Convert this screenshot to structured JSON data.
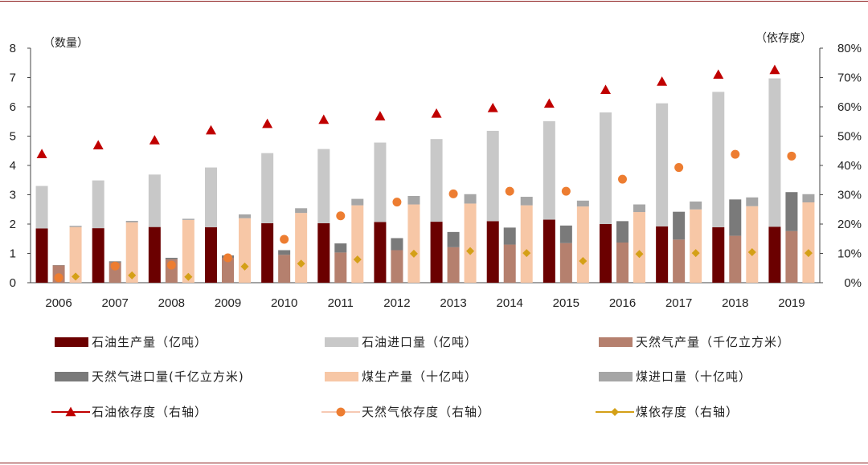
{
  "chart_data": {
    "type": "bar",
    "categories": [
      "2006",
      "2007",
      "2008",
      "2009",
      "2010",
      "2011",
      "2012",
      "2013",
      "2014",
      "2015",
      "2016",
      "2017",
      "2018",
      "2019"
    ],
    "ylabel_left": "（数量）",
    "ylabel_right": "（依存度）",
    "ylim_left": [
      0,
      8
    ],
    "ylim_right": [
      0,
      80
    ],
    "yticks_left": [
      "0",
      "1",
      "2",
      "3",
      "4",
      "5",
      "6",
      "7",
      "8"
    ],
    "yticks_right": [
      "0%",
      "10%",
      "20%",
      "30%",
      "40%",
      "50%",
      "60%",
      "70%",
      "80%"
    ],
    "series": [
      {
        "name": "石油生产量（亿吨）",
        "kind": "bar-stack-oil",
        "color": "#6b0000",
        "values": [
          1.85,
          1.86,
          1.9,
          1.89,
          2.03,
          2.03,
          2.07,
          2.08,
          2.1,
          2.15,
          2.0,
          1.92,
          1.89,
          1.91
        ]
      },
      {
        "name": "石油进口量（亿吨）",
        "kind": "bar-stack-oil",
        "color": "#c8c8c8",
        "values": [
          1.45,
          1.63,
          1.79,
          2.04,
          2.39,
          2.53,
          2.71,
          2.82,
          3.08,
          3.36,
          3.81,
          4.2,
          4.62,
          5.06
        ]
      },
      {
        "name": "天然气产量（千亿立方米）",
        "kind": "bar-stack-gas",
        "color": "#b5806e",
        "values": [
          0.59,
          0.69,
          0.8,
          0.85,
          0.95,
          1.03,
          1.11,
          1.21,
          1.3,
          1.35,
          1.37,
          1.47,
          1.6,
          1.76
        ]
      },
      {
        "name": "天然气进口量(千亿立方米)",
        "kind": "bar-stack-gas",
        "color": "#7a7a7a",
        "values": [
          0.01,
          0.04,
          0.05,
          0.08,
          0.16,
          0.31,
          0.41,
          0.52,
          0.58,
          0.6,
          0.73,
          0.95,
          1.24,
          1.33
        ]
      },
      {
        "name": "煤生产量（十亿吨）",
        "kind": "bar-stack-coal",
        "color": "#f7c7a6",
        "values": [
          1.9,
          2.06,
          2.14,
          2.2,
          2.38,
          2.64,
          2.67,
          2.7,
          2.64,
          2.6,
          2.41,
          2.5,
          2.61,
          2.74
        ]
      },
      {
        "name": "煤进口量（十亿吨）",
        "kind": "bar-stack-coal",
        "color": "#a6a6a6",
        "values": [
          0.04,
          0.05,
          0.04,
          0.13,
          0.16,
          0.22,
          0.29,
          0.32,
          0.29,
          0.2,
          0.26,
          0.27,
          0.3,
          0.28
        ]
      },
      {
        "name": "石油依存度（右轴）",
        "kind": "marker-triangle",
        "color": "#c00000",
        "values": [
          43.9,
          46.9,
          48.6,
          52.0,
          54.2,
          55.6,
          56.8,
          57.7,
          59.6,
          61.1,
          65.8,
          68.6,
          71.0,
          72.6
        ]
      },
      {
        "name": "天然气依存度（右轴）",
        "kind": "marker-circle",
        "color": "#ed7d31",
        "values": [
          1.7,
          5.7,
          6.0,
          8.5,
          14.8,
          22.8,
          27.5,
          30.3,
          31.2,
          31.2,
          35.3,
          39.3,
          43.8,
          43.2
        ]
      },
      {
        "name": "煤依存度（右轴）",
        "kind": "marker-diamond",
        "color": "#d4a017",
        "values": [
          2.1,
          2.5,
          2.0,
          5.5,
          6.5,
          7.9,
          9.9,
          10.8,
          10.1,
          7.4,
          9.8,
          10.1,
          10.4,
          10.1
        ]
      }
    ],
    "grid": false,
    "legend_position": "bottom"
  }
}
